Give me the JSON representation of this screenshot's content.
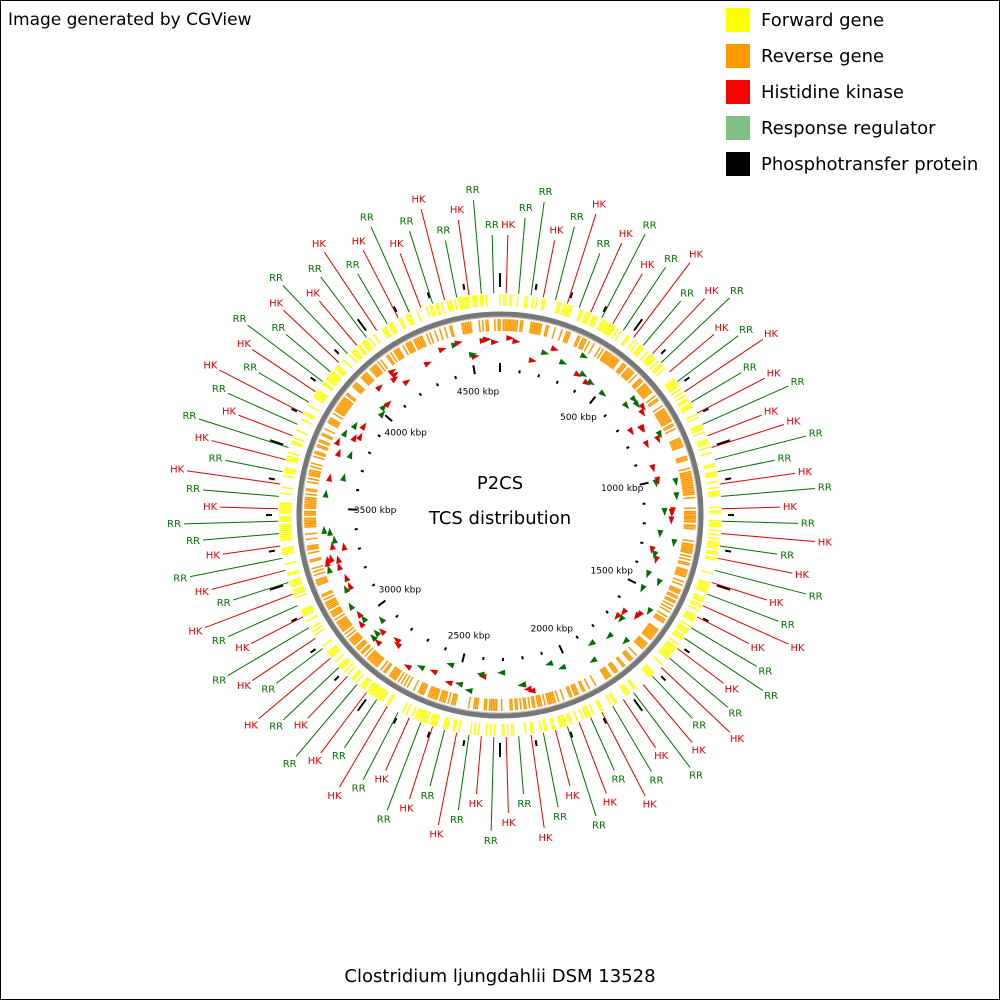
{
  "header": {
    "title": "Image generated by CGView"
  },
  "legend": [
    {
      "label": "Forward gene",
      "color": "#ffff00"
    },
    {
      "label": "Reverse gene",
      "color": "#ff9900"
    },
    {
      "label": "Histidine kinase",
      "color": "#ff0000"
    },
    {
      "label": "Response regulator",
      "color": "#80c080"
    },
    {
      "label": "Phosphotransfer protein",
      "color": "#000000"
    }
  ],
  "center": {
    "line1": "P2CS",
    "line2": "TCS distribution"
  },
  "footer": "Clostridium ljungdahlii DSM 13528",
  "scale_labels": [
    "500 kbp",
    "1000 kbp",
    "1500 kbp",
    "2000 kbp",
    "2500 kbp",
    "3000 kbp",
    "3500 kbp",
    "4000 kbp",
    "4500 kbp"
  ],
  "callouts": [
    {
      "text": "HK",
      "color": "#e00000"
    },
    {
      "text": "RR",
      "color": "#007000"
    },
    {
      "text": "RR",
      "color": "#007000"
    },
    {
      "text": "HK",
      "color": "#e00000"
    },
    {
      "text": "RR",
      "color": "#007000"
    },
    {
      "text": "HK",
      "color": "#e00000"
    },
    {
      "text": "RR",
      "color": "#007000"
    },
    {
      "text": "HK",
      "color": "#e00000"
    },
    {
      "text": "RR",
      "color": "#007000"
    },
    {
      "text": "HK",
      "color": "#e00000"
    },
    {
      "text": "RR",
      "color": "#007000"
    },
    {
      "text": "HK",
      "color": "#e00000"
    },
    {
      "text": "RR",
      "color": "#007000"
    },
    {
      "text": "HK",
      "color": "#e00000"
    },
    {
      "text": "RR",
      "color": "#007000"
    },
    {
      "text": "HK",
      "color": "#e00000"
    },
    {
      "text": "RR",
      "color": "#007000"
    },
    {
      "text": "HK",
      "color": "#e00000"
    },
    {
      "text": "RR",
      "color": "#007000"
    },
    {
      "text": "HK",
      "color": "#e00000"
    },
    {
      "text": "RR",
      "color": "#007000"
    },
    {
      "text": "HK",
      "color": "#e00000"
    },
    {
      "text": "HK",
      "color": "#e00000"
    },
    {
      "text": "RR",
      "color": "#007000"
    },
    {
      "text": "RR",
      "color": "#007000"
    },
    {
      "text": "HK",
      "color": "#e00000"
    },
    {
      "text": "RR",
      "color": "#007000"
    },
    {
      "text": "HK",
      "color": "#e00000"
    },
    {
      "text": "RR",
      "color": "#007000"
    },
    {
      "text": "HK",
      "color": "#e00000"
    },
    {
      "text": "RR",
      "color": "#007000"
    },
    {
      "text": "HK",
      "color": "#e00000"
    },
    {
      "text": "RR",
      "color": "#007000"
    },
    {
      "text": "HK",
      "color": "#e00000"
    },
    {
      "text": "RR",
      "color": "#007000"
    },
    {
      "text": "HK",
      "color": "#e00000"
    },
    {
      "text": "HK",
      "color": "#e00000"
    },
    {
      "text": "RR",
      "color": "#007000"
    },
    {
      "text": "RR",
      "color": "#007000"
    },
    {
      "text": "HK",
      "color": "#e00000"
    },
    {
      "text": "RR",
      "color": "#007000"
    },
    {
      "text": "HK",
      "color": "#e00000"
    },
    {
      "text": "RR",
      "color": "#007000"
    },
    {
      "text": "HK",
      "color": "#e00000"
    },
    {
      "text": "RR",
      "color": "#007000"
    },
    {
      "text": "HK",
      "color": "#e00000"
    },
    {
      "text": "RR",
      "color": "#007000"
    },
    {
      "text": "HK",
      "color": "#e00000"
    },
    {
      "text": "RR",
      "color": "#007000"
    },
    {
      "text": "HK",
      "color": "#e00000"
    },
    {
      "text": "RR",
      "color": "#007000"
    },
    {
      "text": "HK",
      "color": "#e00000"
    },
    {
      "text": "RR",
      "color": "#007000"
    },
    {
      "text": "HK",
      "color": "#e00000"
    },
    {
      "text": "RR",
      "color": "#007000"
    },
    {
      "text": "HK",
      "color": "#e00000"
    },
    {
      "text": "RR",
      "color": "#007000"
    },
    {
      "text": "HK",
      "color": "#e00000"
    },
    {
      "text": "RR",
      "color": "#007000"
    },
    {
      "text": "HK",
      "color": "#e00000"
    },
    {
      "text": "RR",
      "color": "#007000"
    },
    {
      "text": "HK",
      "color": "#e00000"
    },
    {
      "text": "RR",
      "color": "#007000"
    },
    {
      "text": "HK",
      "color": "#e00000"
    },
    {
      "text": "RR",
      "color": "#007000"
    },
    {
      "text": "HK",
      "color": "#e00000"
    },
    {
      "text": "RR",
      "color": "#007000"
    },
    {
      "text": "HK",
      "color": "#e00000"
    },
    {
      "text": "RR",
      "color": "#007000"
    },
    {
      "text": "HK",
      "color": "#e00000"
    },
    {
      "text": "RR",
      "color": "#007000"
    },
    {
      "text": "HK",
      "color": "#e00000"
    },
    {
      "text": "RR",
      "color": "#007000"
    },
    {
      "text": "HK",
      "color": "#e00000"
    },
    {
      "text": "RR",
      "color": "#007000"
    },
    {
      "text": "HK",
      "color": "#e00000"
    },
    {
      "text": "RR",
      "color": "#007000"
    },
    {
      "text": "HK",
      "color": "#e00000"
    },
    {
      "text": "RR",
      "color": "#007000"
    },
    {
      "text": "HK",
      "color": "#e00000"
    },
    {
      "text": "RR",
      "color": "#007000"
    },
    {
      "text": "HK",
      "color": "#e00000"
    },
    {
      "text": "RR",
      "color": "#007000"
    },
    {
      "text": "RR",
      "color": "#007000"
    },
    {
      "text": "HK",
      "color": "#e00000"
    },
    {
      "text": "RR",
      "color": "#007000"
    },
    {
      "text": "HK",
      "color": "#e00000"
    },
    {
      "text": "RR",
      "color": "#007000"
    },
    {
      "text": "HK",
      "color": "#e00000"
    },
    {
      "text": "RR",
      "color": "#007000"
    },
    {
      "text": "HK",
      "color": "#e00000"
    },
    {
      "text": "RR",
      "color": "#007000"
    },
    {
      "text": "HK",
      "color": "#e00000"
    },
    {
      "text": "RR",
      "color": "#007000"
    },
    {
      "text": "HK",
      "color": "#e00000"
    },
    {
      "text": "RR",
      "color": "#007000"
    },
    {
      "text": "RR",
      "color": "#007000"
    },
    {
      "text": "HK",
      "color": "#e00000"
    },
    {
      "text": "RR",
      "color": "#007000"
    },
    {
      "text": "HK",
      "color": "#e00000"
    },
    {
      "text": "RR",
      "color": "#007000"
    },
    {
      "text": "HK",
      "color": "#e00000"
    },
    {
      "text": "RR",
      "color": "#007000"
    },
    {
      "text": "HK",
      "color": "#e00000"
    },
    {
      "text": "RR",
      "color": "#007000"
    },
    {
      "text": "HK",
      "color": "#e00000"
    },
    {
      "text": "RR",
      "color": "#007000"
    },
    {
      "text": "HK",
      "color": "#e00000"
    },
    {
      "text": "RR",
      "color": "#007000"
    },
    {
      "text": "HK",
      "color": "#e00000"
    },
    {
      "text": "RR",
      "color": "#007000"
    },
    {
      "text": "RR",
      "color": "#007000"
    }
  ]
}
